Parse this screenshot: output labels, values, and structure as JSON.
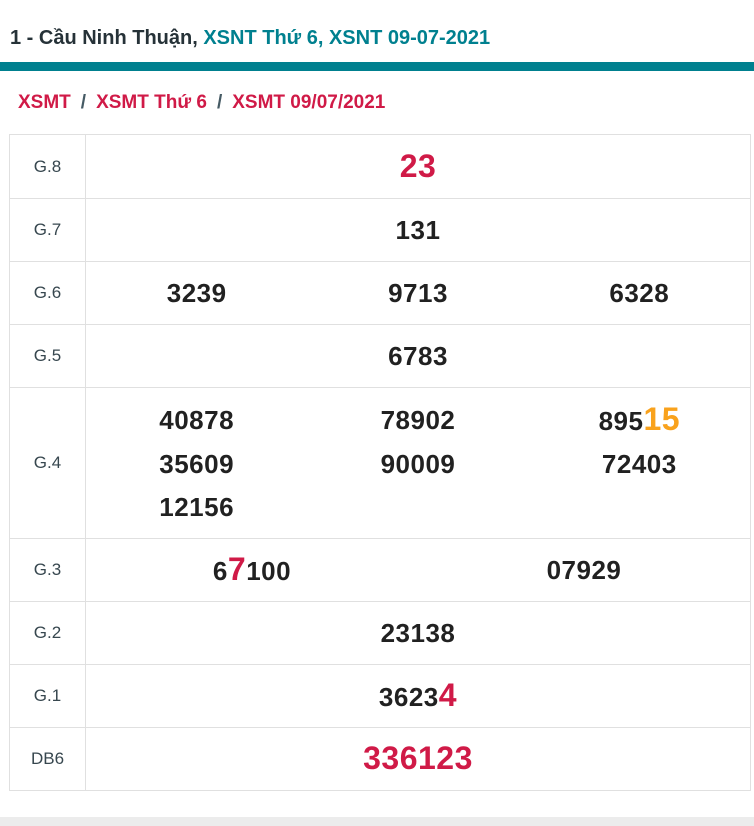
{
  "header": {
    "title_prefix": "1 - Cầu Ninh Thuận,",
    "title_link_day": "XSNT Thứ 6,",
    "title_link_date": "XSNT 09-07-2021"
  },
  "breadcrumb": {
    "separator": "/",
    "items": [
      "XSMT",
      "XSMT Thứ 6",
      "XSMT 09/07/2021"
    ]
  },
  "table": {
    "rows": [
      {
        "label": "G.8",
        "cols": 1,
        "tall": false,
        "values": [
          {
            "segments": [
              {
                "text": "23",
                "color": "red",
                "big": true
              }
            ]
          }
        ]
      },
      {
        "label": "G.7",
        "cols": 1,
        "tall": false,
        "values": [
          {
            "segments": [
              {
                "text": "131"
              }
            ]
          }
        ]
      },
      {
        "label": "G.6",
        "cols": 3,
        "tall": false,
        "values": [
          {
            "segments": [
              {
                "text": "3239"
              }
            ]
          },
          {
            "segments": [
              {
                "text": "9713"
              }
            ]
          },
          {
            "segments": [
              {
                "text": "6328"
              }
            ]
          }
        ]
      },
      {
        "label": "G.5",
        "cols": 1,
        "tall": false,
        "values": [
          {
            "segments": [
              {
                "text": "6783"
              }
            ]
          }
        ]
      },
      {
        "label": "G.4",
        "cols": 3,
        "tall": true,
        "values": [
          {
            "segments": [
              {
                "text": "40878"
              }
            ]
          },
          {
            "segments": [
              {
                "text": "78902"
              }
            ]
          },
          {
            "segments": [
              {
                "text": "895"
              },
              {
                "text": "15",
                "color": "orange",
                "big": true
              }
            ]
          },
          {
            "segments": [
              {
                "text": "35609"
              }
            ]
          },
          {
            "segments": [
              {
                "text": "90009"
              }
            ]
          },
          {
            "segments": [
              {
                "text": "72403"
              }
            ]
          },
          {
            "segments": [
              {
                "text": "12156"
              }
            ]
          }
        ]
      },
      {
        "label": "G.3",
        "cols": 2,
        "tall": false,
        "values": [
          {
            "segments": [
              {
                "text": "6"
              },
              {
                "text": "7",
                "color": "red",
                "big": true
              },
              {
                "text": "100"
              }
            ]
          },
          {
            "segments": [
              {
                "text": "07929"
              }
            ]
          }
        ]
      },
      {
        "label": "G.2",
        "cols": 1,
        "tall": false,
        "values": [
          {
            "segments": [
              {
                "text": "23138"
              }
            ]
          }
        ]
      },
      {
        "label": "G.1",
        "cols": 1,
        "tall": false,
        "values": [
          {
            "segments": [
              {
                "text": "3623"
              },
              {
                "text": "4",
                "color": "red",
                "big": true
              }
            ]
          }
        ]
      },
      {
        "label": "DB6",
        "cols": 1,
        "tall": false,
        "values": [
          {
            "segments": [
              {
                "text": "336123",
                "color": "red",
                "big": true
              }
            ]
          }
        ]
      }
    ]
  },
  "colors": {
    "teal": "#00808f",
    "crimson": "#d01a47",
    "orange": "#f9a21c",
    "dark": "#263238",
    "number": "#212121",
    "border": "#e0e0e0",
    "band": "#ececec"
  }
}
